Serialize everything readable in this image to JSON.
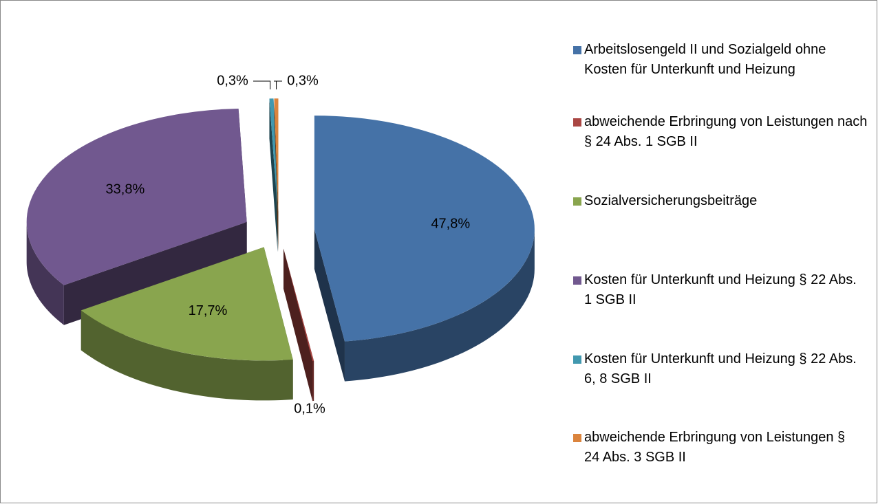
{
  "chart_data": {
    "type": "pie",
    "categories": [
      "Arbeitslosengeld II und Sozialgeld ohne Kosten für Unterkunft und Heizung",
      "abweichende Erbringung von Leistungen nach § 24 Abs. 1 SGB II",
      "Sozialversicherungsbeiträge",
      "Kosten für Unterkunft und Heizung § 22 Abs. 1 SGB II",
      "Kosten für Unterkunft und Heizung § 22 Abs. 6, 8 SGB II",
      "abweichende Erbringung von Leistungen § 24 Abs. 3 SGB II"
    ],
    "values": [
      47.8,
      0.1,
      17.7,
      33.8,
      0.3,
      0.3
    ],
    "value_labels": [
      "47,8%",
      "0,1%",
      "17,7%",
      "33,8%",
      "0,3%",
      "0,3%"
    ],
    "colors": [
      "#4572a7",
      "#aa4643",
      "#89a54e",
      "#71588f",
      "#4198af",
      "#db843d"
    ],
    "legend": "right"
  }
}
